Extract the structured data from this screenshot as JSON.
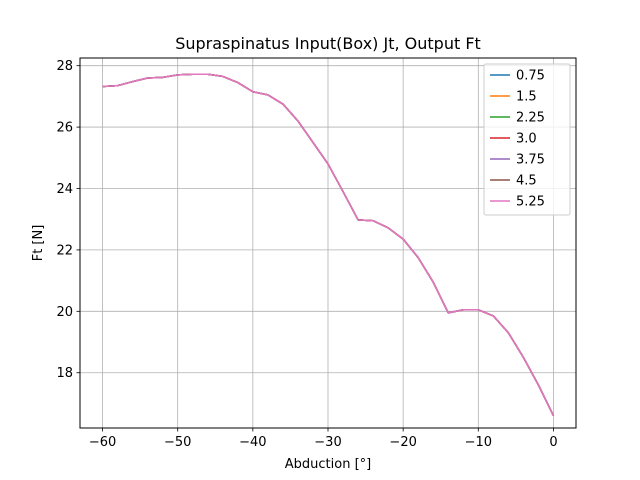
{
  "chart_data": {
    "type": "line",
    "title": "Supraspinatus Input(Box) Jt, Output Ft",
    "xlabel": "Abduction [°]",
    "ylabel": "Ft [N]",
    "xlim": [
      -63,
      3
    ],
    "ylim": [
      16.2,
      28.25
    ],
    "xticks": [
      -60,
      -50,
      -40,
      -30,
      -20,
      -10,
      0
    ],
    "xtick_labels": [
      "−60",
      "−50",
      "−40",
      "−30",
      "−20",
      "−10",
      "0"
    ],
    "yticks": [
      18,
      20,
      22,
      24,
      26,
      28
    ],
    "ytick_labels": [
      "18",
      "20",
      "22",
      "24",
      "26",
      "28"
    ],
    "grid": true,
    "legend_position": "top-right",
    "x": [
      -60,
      -58,
      -56,
      -54,
      -52,
      -50,
      -48,
      -46,
      -44,
      -42,
      -40,
      -38,
      -36,
      -34,
      -32,
      -30,
      -28,
      -26,
      -24,
      -22,
      -20,
      -18,
      -16,
      -14,
      -12,
      -10,
      -8,
      -6,
      -4,
      -2,
      0
    ],
    "series": [
      {
        "name": "0.75",
        "color": "#1f77b4",
        "values": [
          27.32,
          27.35,
          27.48,
          27.6,
          27.62,
          27.7,
          27.72,
          27.72,
          27.65,
          27.45,
          27.15,
          27.05,
          26.75,
          26.2,
          25.5,
          24.8,
          23.9,
          22.98,
          22.95,
          22.72,
          22.35,
          21.75,
          20.95,
          19.95,
          20.05,
          20.05,
          19.85,
          19.3,
          18.5,
          17.6,
          16.6
        ]
      },
      {
        "name": "1.5",
        "color": "#ff7f0e",
        "values": [
          27.32,
          27.35,
          27.48,
          27.6,
          27.62,
          27.7,
          27.72,
          27.72,
          27.65,
          27.45,
          27.15,
          27.05,
          26.75,
          26.2,
          25.5,
          24.8,
          23.9,
          22.98,
          22.95,
          22.72,
          22.35,
          21.75,
          20.95,
          19.95,
          20.05,
          20.05,
          19.85,
          19.3,
          18.5,
          17.6,
          16.6
        ]
      },
      {
        "name": "2.25",
        "color": "#2ca02c",
        "values": [
          27.32,
          27.35,
          27.48,
          27.6,
          27.62,
          27.7,
          27.72,
          27.72,
          27.65,
          27.45,
          27.15,
          27.05,
          26.75,
          26.2,
          25.5,
          24.8,
          23.9,
          22.98,
          22.95,
          22.72,
          22.35,
          21.75,
          20.95,
          19.95,
          20.05,
          20.05,
          19.85,
          19.3,
          18.5,
          17.6,
          16.6
        ]
      },
      {
        "name": "3.0",
        "color": "#d62728",
        "values": [
          27.32,
          27.35,
          27.48,
          27.6,
          27.62,
          27.7,
          27.72,
          27.72,
          27.65,
          27.45,
          27.15,
          27.05,
          26.75,
          26.2,
          25.5,
          24.8,
          23.9,
          22.98,
          22.95,
          22.72,
          22.35,
          21.75,
          20.95,
          19.95,
          20.05,
          20.05,
          19.85,
          19.3,
          18.5,
          17.6,
          16.6
        ]
      },
      {
        "name": "3.75",
        "color": "#9467bd",
        "values": [
          27.32,
          27.35,
          27.48,
          27.6,
          27.62,
          27.7,
          27.72,
          27.72,
          27.65,
          27.45,
          27.15,
          27.05,
          26.75,
          26.2,
          25.5,
          24.8,
          23.9,
          22.98,
          22.95,
          22.72,
          22.35,
          21.75,
          20.95,
          19.95,
          20.05,
          20.05,
          19.85,
          19.3,
          18.5,
          17.6,
          16.6
        ]
      },
      {
        "name": "4.5",
        "color": "#8c564b",
        "values": [
          27.32,
          27.35,
          27.48,
          27.6,
          27.62,
          27.7,
          27.72,
          27.72,
          27.65,
          27.45,
          27.15,
          27.05,
          26.75,
          26.2,
          25.5,
          24.8,
          23.9,
          22.98,
          22.95,
          22.72,
          22.35,
          21.75,
          20.95,
          19.95,
          20.05,
          20.05,
          19.85,
          19.3,
          18.5,
          17.6,
          16.6
        ]
      },
      {
        "name": "5.25",
        "color": "#e377c2",
        "values": [
          27.32,
          27.35,
          27.48,
          27.6,
          27.62,
          27.7,
          27.72,
          27.72,
          27.65,
          27.45,
          27.15,
          27.05,
          26.75,
          26.2,
          25.5,
          24.8,
          23.9,
          22.98,
          22.95,
          22.72,
          22.35,
          21.75,
          20.95,
          19.95,
          20.05,
          20.05,
          19.85,
          19.3,
          18.5,
          17.6,
          16.6
        ]
      }
    ]
  }
}
